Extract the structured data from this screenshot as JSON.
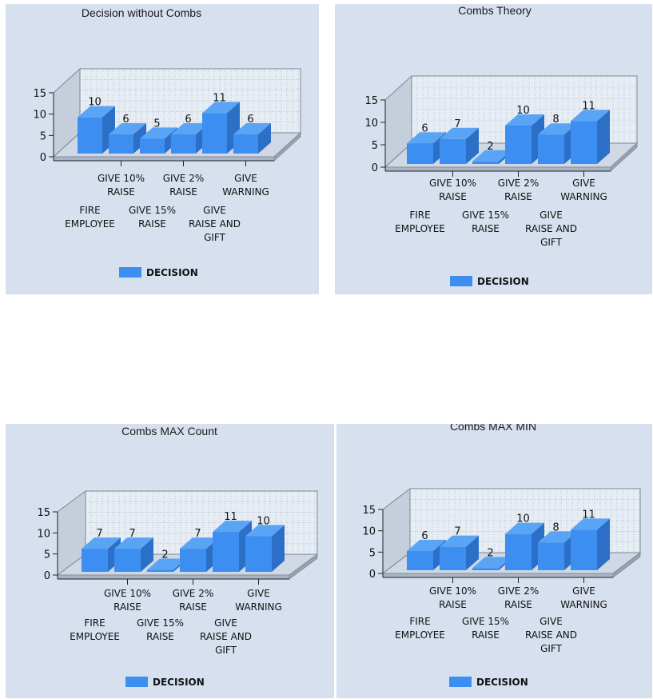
{
  "chart_data": [
    {
      "type": "bar",
      "title": "Decision without Combs",
      "categories": [
        "FIRE EMPLOYEE",
        "GIVE 10% RAISE",
        "GIVE 15% RAISE",
        "GIVE 2% RAISE",
        "GIVE RAISE AND GIFT",
        "GIVE WARNING"
      ],
      "values": [
        10,
        6,
        5,
        6,
        11,
        6
      ],
      "series": [
        {
          "name": "DECISION",
          "values": [
            10,
            6,
            5,
            6,
            11,
            6
          ]
        }
      ],
      "yticks": [
        "0",
        "5",
        "10",
        "15"
      ],
      "ylim": [
        0,
        15
      ],
      "legend": "bottom",
      "grid": true
    },
    {
      "type": "bar",
      "title": "Combs Theory",
      "categories": [
        "FIRE EMPLOYEE",
        "GIVE 10% RAISE",
        "GIVE 15% RAISE",
        "GIVE 2% RAISE",
        "GIVE RAISE AND GIFT",
        "GIVE WARNING"
      ],
      "values": [
        6,
        7,
        2,
        10,
        8,
        11
      ],
      "series": [
        {
          "name": "DECISION",
          "values": [
            6,
            7,
            2,
            10,
            8,
            11
          ]
        }
      ],
      "yticks": [
        "0",
        "5",
        "10",
        "15"
      ],
      "ylim": [
        0,
        15
      ],
      "legend": "bottom",
      "grid": true
    },
    {
      "type": "bar",
      "title": "Combs MAX Count",
      "categories": [
        "FIRE EMPLOYEE",
        "GIVE 10% RAISE",
        "GIVE 15% RAISE",
        "GIVE 2% RAISE",
        "GIVE RAISE AND GIFT",
        "GIVE WARNING"
      ],
      "values": [
        7,
        7,
        2,
        7,
        11,
        10
      ],
      "series": [
        {
          "name": "DECISION",
          "values": [
            7,
            7,
            2,
            7,
            11,
            10
          ]
        }
      ],
      "yticks": [
        "0",
        "5",
        "10",
        "15"
      ],
      "ylim": [
        0,
        15
      ],
      "legend": "bottom",
      "grid": true
    },
    {
      "type": "bar",
      "title": "Combs MAX MIN",
      "categories": [
        "FIRE EMPLOYEE",
        "GIVE 10% RAISE",
        "GIVE 15% RAISE",
        "GIVE 2% RAISE",
        "GIVE RAISE AND GIFT",
        "GIVE WARNING"
      ],
      "values": [
        6,
        7,
        2,
        10,
        8,
        11
      ],
      "series": [
        {
          "name": "DECISION",
          "values": [
            6,
            7,
            2,
            10,
            8,
            11
          ]
        }
      ],
      "yticks": [
        "0",
        "5",
        "10",
        "15"
      ],
      "ylim": [
        0,
        15
      ],
      "legend": "bottom",
      "grid": true
    }
  ],
  "colors": {
    "bar_front": "#3c8ff0",
    "bar_side": "#2c6fc6",
    "bar_top": "#5aa4f6",
    "panel_bg": "#d7e0ee",
    "wall": "#c5cfdc"
  }
}
